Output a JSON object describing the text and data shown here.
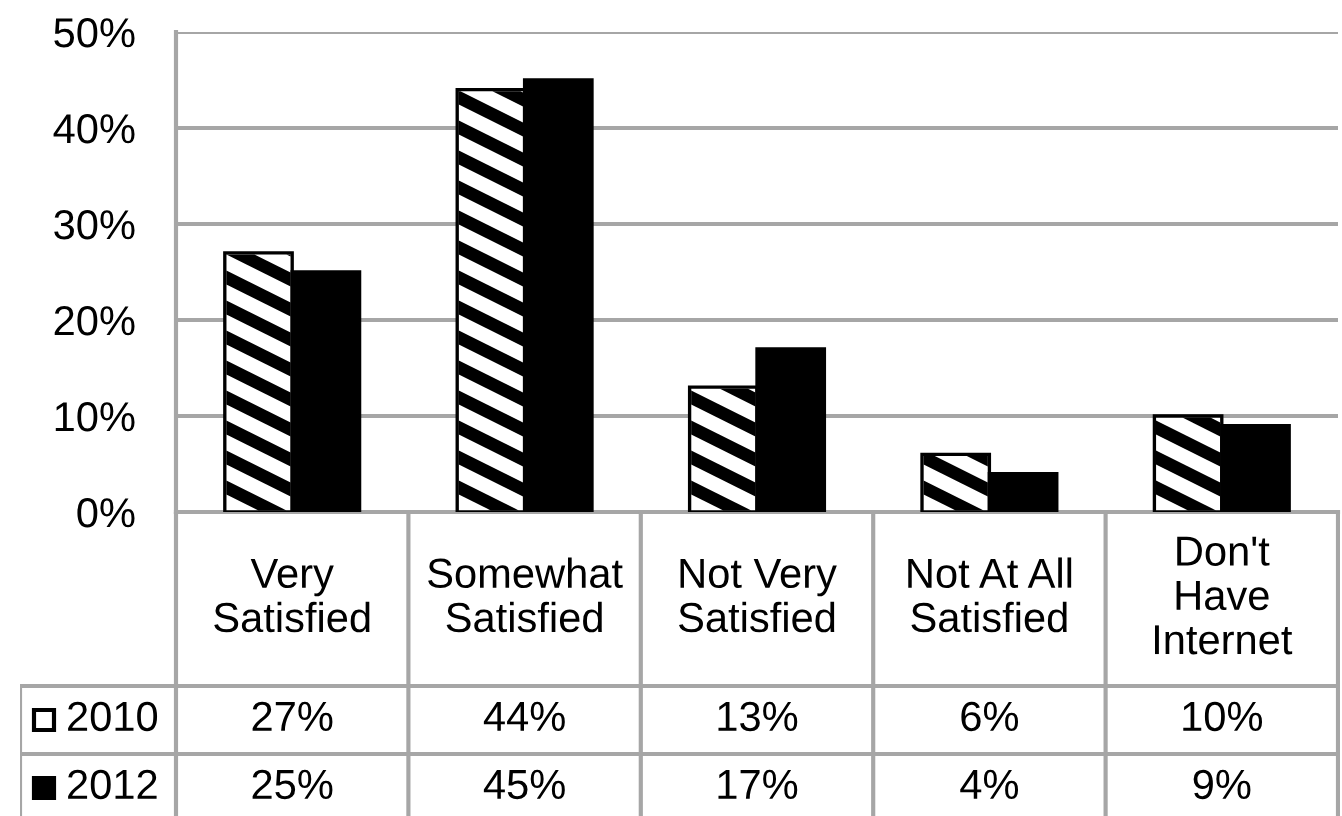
{
  "chart_data": {
    "type": "bar",
    "categories": [
      "Very\nSatisfied",
      "Somewhat\nSatisfied",
      "Not Very\nSatisfied",
      "Not At All\nSatisfied",
      "Don't\nHave\nInternet"
    ],
    "series": [
      {
        "name": "2010",
        "color": "#ffffff",
        "values": [
          27,
          44,
          13,
          6,
          10
        ],
        "value_labels": [
          "27%",
          "44%",
          "13%",
          "6%",
          "10%"
        ]
      },
      {
        "name": "2012",
        "color": "#000000",
        "values": [
          25,
          45,
          17,
          4,
          9
        ],
        "value_labels": [
          "25%",
          "45%",
          "17%",
          "4%",
          "9%"
        ]
      }
    ],
    "ylim": [
      0,
      50
    ],
    "yticks": [
      {
        "value": 0,
        "label": "0%"
      },
      {
        "value": 10,
        "label": "10%"
      },
      {
        "value": 20,
        "label": "20%"
      },
      {
        "value": 30,
        "label": "30%"
      },
      {
        "value": 40,
        "label": "40%"
      },
      {
        "value": 50,
        "label": "50%"
      }
    ],
    "grid": "y",
    "legend": "bottom left"
  }
}
